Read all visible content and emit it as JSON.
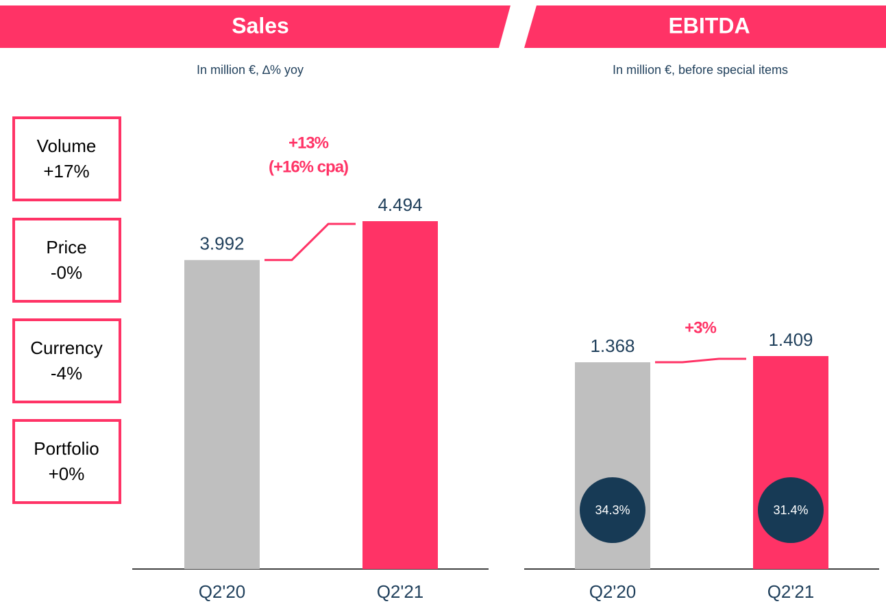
{
  "chart_data": [
    {
      "type": "bar",
      "title": "Sales",
      "subtitle": "In million €, ∆% yoy",
      "categories": [
        "Q2'20",
        "Q2'21"
      ],
      "values": [
        3992,
        4494
      ],
      "value_labels": [
        "3.992",
        "4.494"
      ],
      "colors": [
        "#bfbfbf",
        "#ff3366"
      ],
      "annotations": [
        "+13%",
        "(+16% cpa)"
      ]
    },
    {
      "type": "bar",
      "title": "EBITDA",
      "subtitle": "In million €, before special items",
      "categories": [
        "Q2'20",
        "Q2'21"
      ],
      "values": [
        1368,
        1409
      ],
      "value_labels": [
        "1.368",
        "1.409"
      ],
      "colors": [
        "#bfbfbf",
        "#ff3366"
      ],
      "annotations": [
        "+3%"
      ],
      "margins": [
        34.3,
        31.4
      ],
      "margin_labels": [
        "34.3%",
        "31.4%"
      ]
    }
  ],
  "drivers": [
    {
      "label": "Volume",
      "value": "+17%"
    },
    {
      "label": "Price",
      "value": "-0%"
    },
    {
      "label": "Currency",
      "value": "-4%"
    },
    {
      "label": "Portfolio",
      "value": "+0%"
    }
  ]
}
